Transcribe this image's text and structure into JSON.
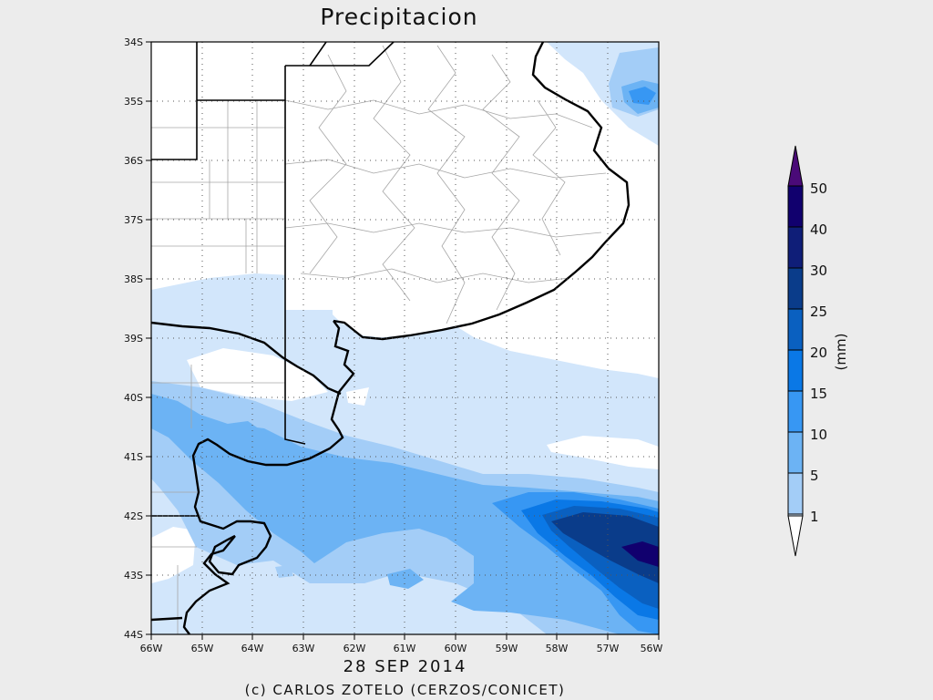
{
  "title": "Precipitacion",
  "date": "28 SEP 2014",
  "credit": "(c) CARLOS ZOTELO (CERZOS/CONICET)",
  "lat_labels": [
    "34S",
    "35S",
    "36S",
    "37S",
    "38S",
    "39S",
    "40S",
    "41S",
    "42S",
    "43S",
    "44S"
  ],
  "lon_labels": [
    "66W",
    "65W",
    "64W",
    "63W",
    "62W",
    "61W",
    "60W",
    "59W",
    "58W",
    "57W",
    "56W"
  ],
  "colorbar": {
    "unit": "(mm)",
    "levels": [
      "1",
      "5",
      "10",
      "15",
      "20",
      "25",
      "30",
      "40",
      "50"
    ],
    "colors": [
      "#ffffff",
      "#d2e6fb",
      "#a3cdf7",
      "#6cb3f4",
      "#3797f3",
      "#0a78e6",
      "#0a60c0",
      "#0a3c8a",
      "#0f1e78",
      "#11006e",
      "#4a0a78"
    ]
  }
}
